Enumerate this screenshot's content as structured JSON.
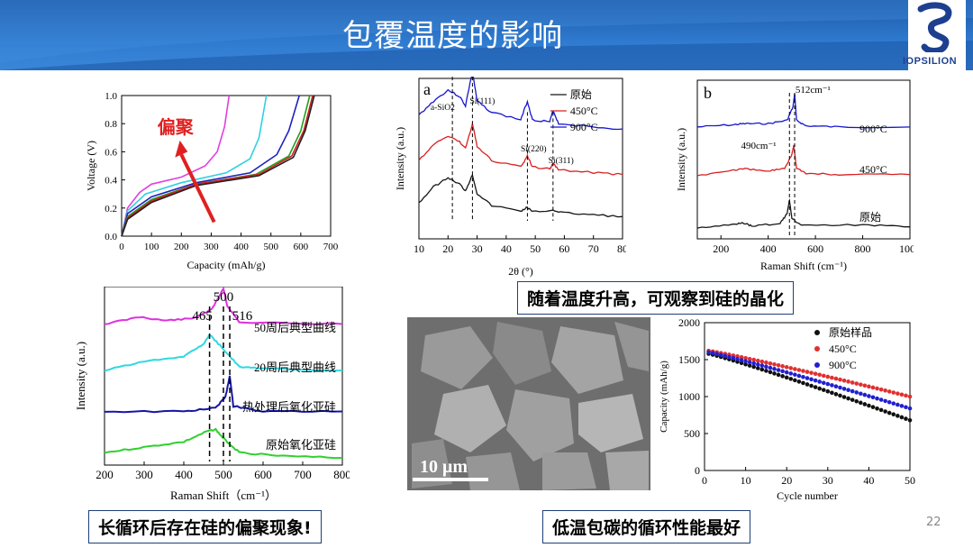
{
  "slide": {
    "title": "包覆温度的影响",
    "logo_text": "IOPSILION",
    "page_number": "22",
    "caption_raman_xrd": "随着温度升高，可观察到硅的晶化",
    "caption_long_cycle": "长循环后存在硅的偏聚现象!",
    "caption_low_temp": "低温包碳的循环性能最好",
    "sem_scale_bar": "10 μm",
    "colors": {
      "header": "#2f7bd0",
      "caption_border": "#1f3f78",
      "red_arrow": "#e02020"
    }
  },
  "chart_data": [
    {
      "id": "voltage-capacity",
      "type": "line",
      "xlabel": "Capacity (mAh/g)",
      "ylabel": "Voltage (V)",
      "xlim": [
        0,
        700
      ],
      "ylim": [
        0,
        1.0
      ],
      "xticks": [
        "0",
        "100",
        "200",
        "300",
        "400",
        "500",
        "600",
        "700"
      ],
      "yticks": [
        "0.0",
        "0.2",
        "0.4",
        "0.6",
        "0.8",
        "1.0"
      ],
      "annotation": "偏聚",
      "series": [
        {
          "name": "magenta",
          "color": "#e040e0",
          "points": [
            [
              0,
              0
            ],
            [
              20,
              0.2
            ],
            [
              60,
              0.31
            ],
            [
              100,
              0.37
            ],
            [
              200,
              0.42
            ],
            [
              280,
              0.5
            ],
            [
              320,
              0.6
            ],
            [
              345,
              0.78
            ],
            [
              360,
              1.0
            ]
          ]
        },
        {
          "name": "cyan",
          "color": "#30d0e0",
          "points": [
            [
              0,
              0
            ],
            [
              20,
              0.18
            ],
            [
              80,
              0.3
            ],
            [
              200,
              0.38
            ],
            [
              350,
              0.45
            ],
            [
              430,
              0.55
            ],
            [
              460,
              0.7
            ],
            [
              485,
              1.0
            ]
          ]
        },
        {
          "name": "blue",
          "color": "#2020c0",
          "points": [
            [
              0,
              0
            ],
            [
              20,
              0.16
            ],
            [
              100,
              0.28
            ],
            [
              250,
              0.38
            ],
            [
              430,
              0.45
            ],
            [
              520,
              0.58
            ],
            [
              560,
              0.75
            ],
            [
              595,
              1.0
            ]
          ]
        },
        {
          "name": "green",
          "color": "#20a020",
          "points": [
            [
              0,
              0
            ],
            [
              20,
              0.14
            ],
            [
              100,
              0.26
            ],
            [
              250,
              0.37
            ],
            [
              450,
              0.44
            ],
            [
              560,
              0.57
            ],
            [
              600,
              0.75
            ],
            [
              630,
              1.0
            ]
          ]
        },
        {
          "name": "red",
          "color": "#d02020",
          "points": [
            [
              0,
              0
            ],
            [
              20,
              0.13
            ],
            [
              100,
              0.25
            ],
            [
              250,
              0.37
            ],
            [
              460,
              0.44
            ],
            [
              570,
              0.57
            ],
            [
              610,
              0.75
            ],
            [
              640,
              1.0
            ]
          ]
        },
        {
          "name": "black",
          "color": "#202020",
          "points": [
            [
              0,
              0
            ],
            [
              20,
              0.12
            ],
            [
              100,
              0.24
            ],
            [
              250,
              0.36
            ],
            [
              460,
              0.43
            ],
            [
              575,
              0.56
            ],
            [
              615,
              0.75
            ],
            [
              645,
              1.0
            ]
          ]
        }
      ]
    },
    {
      "id": "xrd",
      "type": "line",
      "panel_label": "a",
      "xlabel": "2θ (°)",
      "ylabel": "Intensity (a.u.)",
      "xlim": [
        10,
        80
      ],
      "xticks": [
        "10",
        "20",
        "30",
        "40",
        "50",
        "60",
        "70",
        "80"
      ],
      "legend": [
        "原始",
        "450°C",
        "900°C"
      ],
      "peak_labels": [
        "a-SiO2",
        "Si(111)",
        "Si(220)",
        "Si(311)"
      ],
      "peak_positions": [
        21.5,
        28.4,
        47.3,
        56.1
      ],
      "series": [
        {
          "name": "900°C",
          "color": "#1515d0",
          "offset": 0.62,
          "points": [
            [
              10,
              0.15
            ],
            [
              15,
              0.3
            ],
            [
              20,
              0.42
            ],
            [
              24,
              0.35
            ],
            [
              26,
              0.25
            ],
            [
              28.4,
              0.62
            ],
            [
              30,
              0.3
            ],
            [
              35,
              0.18
            ],
            [
              45,
              0.1
            ],
            [
              47.3,
              0.3
            ],
            [
              49,
              0.1
            ],
            [
              55,
              0.08
            ],
            [
              56.1,
              0.2
            ],
            [
              58,
              0.06
            ],
            [
              70,
              0.02
            ],
            [
              80,
              0.0
            ]
          ]
        },
        {
          "name": "450°C",
          "color": "#d82020",
          "offset": 0.35,
          "points": [
            [
              10,
              0.15
            ],
            [
              15,
              0.32
            ],
            [
              20,
              0.42
            ],
            [
              24,
              0.35
            ],
            [
              26,
              0.28
            ],
            [
              28.4,
              0.55
            ],
            [
              30,
              0.3
            ],
            [
              35,
              0.15
            ],
            [
              45,
              0.08
            ],
            [
              47.3,
              0.2
            ],
            [
              49,
              0.08
            ],
            [
              55,
              0.06
            ],
            [
              56.1,
              0.12
            ],
            [
              58,
              0.05
            ],
            [
              70,
              0.02
            ],
            [
              80,
              0.0
            ]
          ]
        },
        {
          "name": "原始",
          "color": "#151515",
          "offset": 0.1,
          "points": [
            [
              10,
              0.15
            ],
            [
              15,
              0.32
            ],
            [
              20,
              0.42
            ],
            [
              24,
              0.35
            ],
            [
              26,
              0.28
            ],
            [
              28.4,
              0.45
            ],
            [
              30,
              0.25
            ],
            [
              35,
              0.12
            ],
            [
              45,
              0.06
            ],
            [
              47.3,
              0.1
            ],
            [
              49,
              0.05
            ],
            [
              56.1,
              0.07
            ],
            [
              60,
              0.04
            ],
            [
              70,
              0.02
            ],
            [
              80,
              0.0
            ]
          ]
        }
      ]
    },
    {
      "id": "raman-temp",
      "type": "line",
      "panel_label": "b",
      "xlabel": "Raman Shift (cm⁻¹)",
      "ylabel": "Intensity (a.u.)",
      "xlim": [
        100,
        1000
      ],
      "xticks": [
        "200",
        "400",
        "600",
        "800",
        "1000"
      ],
      "peak_annotations": [
        "512cm⁻¹",
        "490cm⁻¹"
      ],
      "series_labels": [
        "900°C",
        "450°C",
        "原始"
      ],
      "series": [
        {
          "name": "900°C",
          "color": "#1515d0",
          "offset": 0.68,
          "points": [
            [
              100,
              0.02
            ],
            [
              250,
              0.04
            ],
            [
              300,
              0.05
            ],
            [
              400,
              0.05
            ],
            [
              480,
              0.08
            ],
            [
              505,
              0.2
            ],
            [
              512,
              0.32
            ],
            [
              520,
              0.08
            ],
            [
              560,
              0.03
            ],
            [
              700,
              0.02
            ],
            [
              1000,
              0.02
            ]
          ]
        },
        {
          "name": "450°C",
          "color": "#d82020",
          "offset": 0.38,
          "points": [
            [
              100,
              0.01
            ],
            [
              250,
              0.06
            ],
            [
              300,
              0.07
            ],
            [
              400,
              0.05
            ],
            [
              470,
              0.08
            ],
            [
              500,
              0.2
            ],
            [
              508,
              0.28
            ],
            [
              520,
              0.08
            ],
            [
              560,
              0.03
            ],
            [
              700,
              0.02
            ],
            [
              1000,
              0.02
            ]
          ]
        },
        {
          "name": "原始",
          "color": "#151515",
          "offset": 0.05,
          "points": [
            [
              100,
              0.01
            ],
            [
              250,
              0.04
            ],
            [
              290,
              0.06
            ],
            [
              330,
              0.03
            ],
            [
              450,
              0.05
            ],
            [
              480,
              0.14
            ],
            [
              490,
              0.26
            ],
            [
              500,
              0.1
            ],
            [
              540,
              0.03
            ],
            [
              800,
              0.04
            ],
            [
              1000,
              0.02
            ]
          ]
        }
      ]
    },
    {
      "id": "raman-cycled",
      "type": "line",
      "xlabel": "Raman Shift（cm⁻¹）",
      "ylabel": "Intensity (a.u.)",
      "xlim": [
        200,
        800
      ],
      "xticks": [
        "200",
        "300",
        "400",
        "500",
        "600",
        "700",
        "800"
      ],
      "peak_labels": [
        "465",
        "500",
        "516"
      ],
      "peak_positions": [
        465,
        500,
        516
      ],
      "series_labels": [
        "50周后典型曲线",
        "20周后典型曲线",
        "热处理后氧化亚硅",
        "原始氧化亚硅"
      ],
      "series": [
        {
          "name": "50周后典型曲线",
          "color": "#e030e0",
          "offset": 0.76,
          "points": [
            [
              200,
              0.0
            ],
            [
              290,
              0.04
            ],
            [
              350,
              0.02
            ],
            [
              420,
              0.03
            ],
            [
              470,
              0.08
            ],
            [
              500,
              0.2
            ],
            [
              510,
              0.1
            ],
            [
              540,
              0.01
            ],
            [
              800,
              0.0
            ]
          ]
        },
        {
          "name": "20周后典型曲线",
          "color": "#30d8e0",
          "offset": 0.5,
          "points": [
            [
              200,
              0.0
            ],
            [
              300,
              0.05
            ],
            [
              400,
              0.08
            ],
            [
              450,
              0.15
            ],
            [
              465,
              0.2
            ],
            [
              500,
              0.12
            ],
            [
              540,
              0.02
            ],
            [
              600,
              0.01
            ],
            [
              800,
              0.0
            ]
          ]
        },
        {
          "name": "热处理后氧化亚硅",
          "color": "#1515a8",
          "offset": 0.27,
          "points": [
            [
              200,
              0.0
            ],
            [
              400,
              0.0
            ],
            [
              480,
              0.02
            ],
            [
              505,
              0.08
            ],
            [
              516,
              0.2
            ],
            [
              525,
              0.03
            ],
            [
              600,
              0.0
            ],
            [
              800,
              0.0
            ]
          ]
        },
        {
          "name": "原始氧化亚硅",
          "color": "#30d030",
          "offset": 0.02,
          "points": [
            [
              200,
              0.02
            ],
            [
              300,
              0.05
            ],
            [
              400,
              0.08
            ],
            [
              460,
              0.14
            ],
            [
              480,
              0.15
            ],
            [
              500,
              0.1
            ],
            [
              540,
              0.02
            ],
            [
              650,
              0.0
            ],
            [
              800,
              -0.01
            ]
          ]
        }
      ]
    },
    {
      "id": "cycling",
      "type": "scatter",
      "xlabel": "Cycle number",
      "ylabel": "Capacity (mAh/g)",
      "xlim": [
        0,
        50
      ],
      "ylim": [
        0,
        2000
      ],
      "xticks": [
        "0",
        "10",
        "20",
        "30",
        "40",
        "50"
      ],
      "yticks": [
        "0",
        "500",
        "1000",
        "1500",
        "2000"
      ],
      "legend": [
        "原始样品",
        "450°C",
        "900°C"
      ],
      "series": [
        {
          "name": "原始样品",
          "color": "#101010",
          "start": 1580,
          "end": 680
        },
        {
          "name": "450°C",
          "color": "#e03030",
          "start": 1620,
          "end": 1000
        },
        {
          "name": "900°C",
          "color": "#2020d0",
          "start": 1600,
          "end": 840
        }
      ]
    }
  ]
}
